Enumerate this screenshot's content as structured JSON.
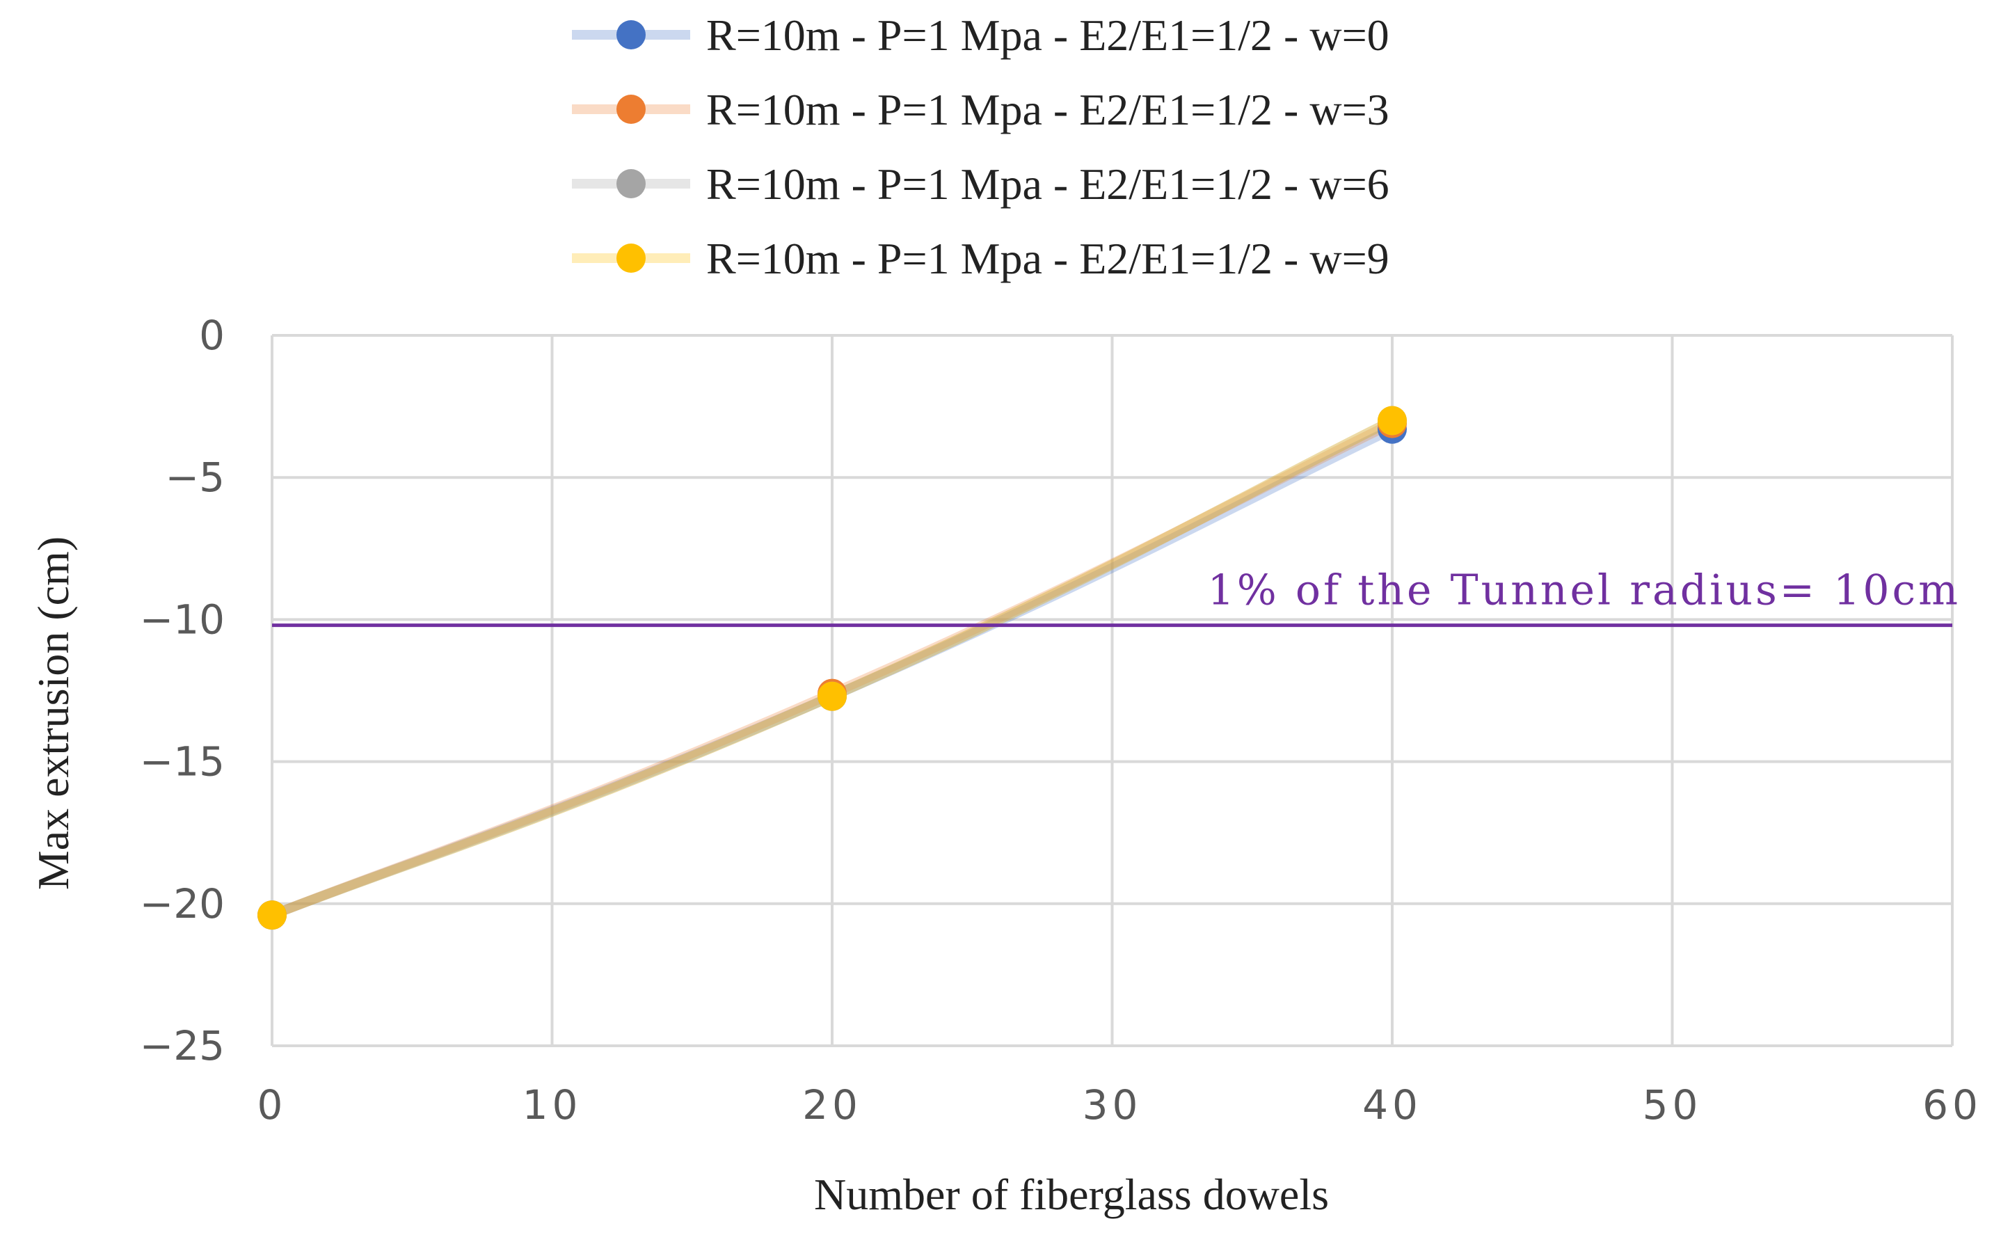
{
  "chart_data": {
    "type": "line",
    "title": "",
    "xlabel": "Number of fiberglass dowels",
    "ylabel": "Max extrusion (cm)",
    "xlim": [
      0,
      60
    ],
    "ylim": [
      -25,
      0
    ],
    "xticks": [
      0,
      10,
      20,
      30,
      40,
      50,
      60
    ],
    "yticks": [
      0,
      -5,
      -10,
      -15,
      -20,
      -25
    ],
    "xtick_labels": [
      "0",
      "10",
      "20",
      "30",
      "40",
      "50",
      "60"
    ],
    "ytick_labels": [
      "0",
      "−5",
      "−10",
      "−15",
      "−20",
      "−25"
    ],
    "grid": true,
    "legend_position": "top-center",
    "series": [
      {
        "name": "R=10m - P=1 Mpa - E2/E1=1/2 - w=0",
        "color": "#4472C4",
        "x": [
          0,
          20,
          40
        ],
        "values": [
          -20.4,
          -12.7,
          -3.3
        ]
      },
      {
        "name": "R=10m - P=1 Mpa - E2/E1=1/2 - w=3",
        "color": "#ED7D31",
        "x": [
          0,
          20,
          40
        ],
        "values": [
          -20.4,
          -12.6,
          -3.1
        ]
      },
      {
        "name": "R=10m - P=1 Mpa - E2/E1=1/2 - w=6",
        "color": "#A5A5A5",
        "x": [
          0,
          20,
          40
        ],
        "values": [
          -20.4,
          -12.7,
          -3.0
        ]
      },
      {
        "name": "R=10m - P=1 Mpa - E2/E1=1/2 - w=9",
        "color": "#FFC000",
        "x": [
          0,
          20,
          40
        ],
        "values": [
          -20.4,
          -12.7,
          -3.0
        ]
      }
    ],
    "reference_line": {
      "y": -10.2,
      "label": "1% of the Tunnel radius= 10cm",
      "color": "#7030A0"
    }
  }
}
